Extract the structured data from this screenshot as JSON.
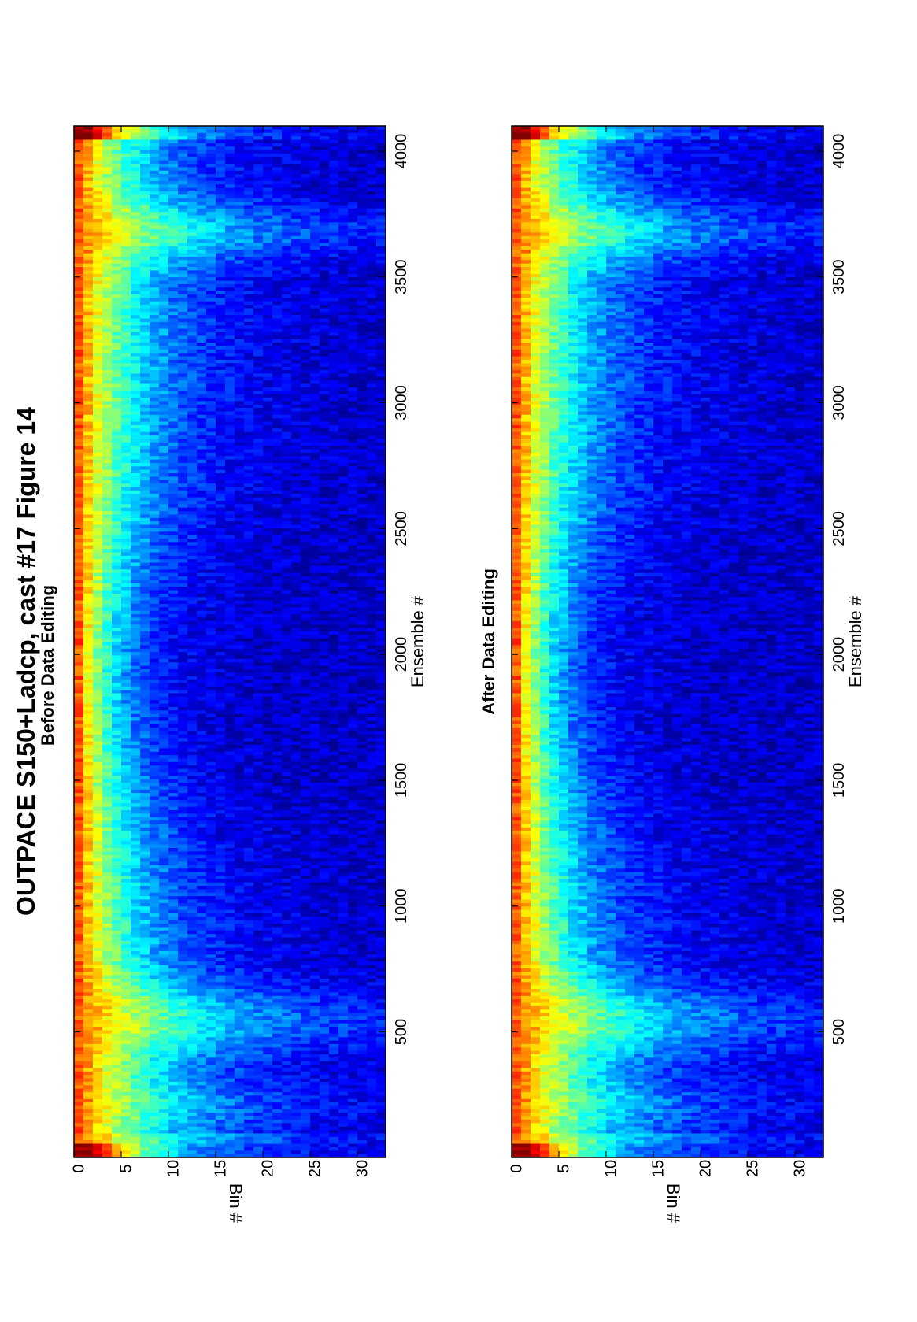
{
  "figure": {
    "title": "OUTPACE S150+Ladcp, cast #17  Figure 14"
  },
  "chart_data": [
    {
      "type": "heatmap",
      "title": "Before Data Editing",
      "xlabel": "Ensemble #",
      "ylabel": "Bin #",
      "xlim": [
        1,
        4100
      ],
      "ylim": [
        0,
        33
      ],
      "xticks": [
        500,
        1000,
        1500,
        2000,
        2500,
        3000,
        3500,
        4000
      ],
      "yticks": [
        0,
        5,
        10,
        15,
        20,
        25,
        30
      ],
      "colormap": "jet",
      "orientation": "page rotated 90 degrees counter-clockwise",
      "grid": false
    },
    {
      "type": "heatmap",
      "title": "After Data Editing",
      "xlabel": "Ensemble #",
      "ylabel": "Bin #",
      "xlim": [
        1,
        4100
      ],
      "ylim": [
        0,
        33
      ],
      "xticks": [
        500,
        1000,
        1500,
        2000,
        2500,
        3000,
        3500,
        4000
      ],
      "yticks": [
        0,
        5,
        10,
        15,
        20,
        25,
        30
      ],
      "colormap": "jet",
      "orientation": "page rotated 90 degrees counter-clockwise",
      "grid": false
    }
  ]
}
